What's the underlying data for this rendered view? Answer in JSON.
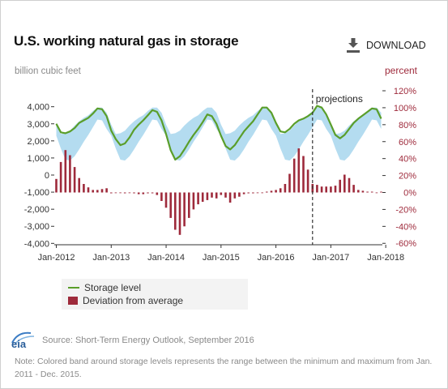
{
  "header": {
    "title": "U.S. working natural gas in storage",
    "download_label": "DOWNLOAD"
  },
  "legend": {
    "storage_label": "Storage level",
    "deviation_label": "Deviation from average"
  },
  "footer": {
    "source": "Source: Short-Term Energy Outlook, September 2016",
    "note": "Note: Colored band around storage levels represents the range between the minimum and maximum from Jan. 2011 - Dec. 2015."
  },
  "colors": {
    "storage_line": "#5a9e2a",
    "band": "#b4dcf0",
    "deviation_bar": "#9e2a3b",
    "right_axis_text": "#9e2a3b"
  },
  "icons": {
    "download": "download-icon",
    "logo": "eia-logo"
  },
  "chart_data": {
    "type": "line",
    "left_axis_label": "billion cubic feet",
    "right_axis_label": "percent",
    "annotation": "projections",
    "projection_start": "2016-09",
    "x_ticks": [
      "Jan-2012",
      "Jan-2013",
      "Jan-2014",
      "Jan-2015",
      "Jan-2016",
      "Jan-2017",
      "Jan-2018"
    ],
    "left_ticks": [
      "4,000",
      "3,000",
      "2,000",
      "1,000",
      "0",
      "-1,000",
      "-2,000",
      "-3,000",
      "-4,000"
    ],
    "right_ticks": [
      "120%",
      "100%",
      "80%",
      "60%",
      "40%",
      "20%",
      "0%",
      "-20%",
      "-40%",
      "-60%"
    ],
    "ylim_left": [
      -4000,
      4500
    ],
    "ylim_right": [
      -60,
      120
    ],
    "x_start": "2012-01",
    "x_end": "2018-01",
    "series": [
      {
        "name": "Storage level",
        "axis": "left",
        "values": [
          3000,
          2500,
          2450,
          2550,
          2750,
          3050,
          3200,
          3350,
          3600,
          3900,
          3850,
          3450,
          2600,
          2100,
          1750,
          1850,
          2200,
          2650,
          2950,
          3200,
          3500,
          3800,
          3700,
          3200,
          2400,
          1450,
          900,
          1100,
          1500,
          1950,
          2350,
          2700,
          3100,
          3550,
          3450,
          3000,
          2300,
          1700,
          1500,
          1750,
          2150,
          2550,
          2850,
          3150,
          3550,
          3950,
          3950,
          3650,
          3050,
          2550,
          2500,
          2700,
          3000,
          3200,
          3300,
          3450,
          3650,
          4050,
          3950,
          3550,
          2950,
          2350,
          2150,
          2350,
          2700,
          3050,
          3300,
          3500,
          3700,
          3900,
          3850,
          3300
        ]
      },
      {
        "name": "Deviation from average",
        "axis": "right",
        "values": [
          16,
          36,
          50,
          44,
          30,
          17,
          10,
          6,
          3,
          3,
          4,
          5,
          -1,
          0,
          0,
          -1,
          0,
          -1,
          -2,
          -2,
          -1,
          -1,
          -3,
          -10,
          -18,
          -30,
          -44,
          -50,
          -40,
          -30,
          -20,
          -14,
          -11,
          -9,
          -6,
          -7,
          -3,
          -6,
          -12,
          -7,
          -5,
          -2,
          -1,
          -1,
          0,
          0,
          1,
          2,
          3,
          5,
          10,
          22,
          40,
          52,
          43,
          27,
          10,
          9,
          7,
          7,
          7,
          8,
          15,
          21,
          17,
          9,
          3,
          2,
          1,
          1,
          0,
          1
        ]
      }
    ],
    "band": {
      "name": "Range between the minimum and maximum from Jan. 2011 - Dec. 2015",
      "min": [
        2300,
        1550,
        900,
        850,
        1100,
        1500,
        1950,
        2350,
        2800,
        3250,
        3200,
        2700
      ],
      "max": [
        2950,
        2400,
        2450,
        2600,
        2900,
        3150,
        3350,
        3500,
        3750,
        3950,
        3950,
        3650
      ]
    },
    "grid": false,
    "legend_position": "bottom-left"
  }
}
